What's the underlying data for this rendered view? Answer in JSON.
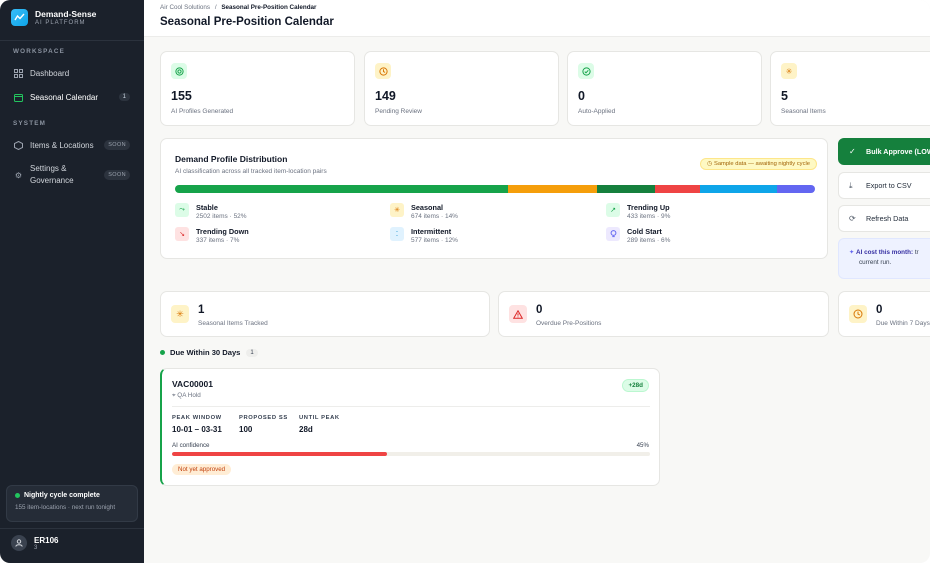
{
  "brand": {
    "name": "Demand-Sense",
    "sub": "AI PLATFORM"
  },
  "sidebar": {
    "workspace_label": "WORKSPACE",
    "system_label": "SYSTEM",
    "items": [
      {
        "label": "Dashboard",
        "icon": "grid-icon"
      },
      {
        "label": "Seasonal Calendar",
        "icon": "calendar-icon",
        "count": "1",
        "active": true
      },
      {
        "label": "Items & Locations",
        "icon": "box-icon",
        "badge": "SOON"
      },
      {
        "label": "Settings & Governance",
        "icon": "gear-icon",
        "badge": "SOON"
      }
    ],
    "nightly": {
      "title": "Nightly cycle complete",
      "sub": "155 item-locations · next run tonight"
    },
    "user": {
      "name": "ER106",
      "sub": "3"
    }
  },
  "header": {
    "breadcrumb_root": "Air Cool Solutions",
    "breadcrumb_sep": "/",
    "breadcrumb_current": "Seasonal Pre-Position Calendar",
    "title": "Seasonal Pre-Position Calendar"
  },
  "stats": [
    {
      "value": "155",
      "label": "AI Profiles Generated"
    },
    {
      "value": "149",
      "label": "Pending Review"
    },
    {
      "value": "0",
      "label": "Auto-Applied"
    },
    {
      "value": "5",
      "label": "Seasonal Items"
    }
  ],
  "distribution": {
    "title": "Demand Profile Distribution",
    "subtitle": "AI classification across all tracked item-location pairs",
    "sample_badge": "Sample data — awaiting nightly cycle",
    "segments": [
      {
        "name": "Stable",
        "fraction": 0.52,
        "color": "#16a34a"
      },
      {
        "name": "Seasonal",
        "fraction": 0.14,
        "color": "#f59e0b"
      },
      {
        "name": "Trending Up",
        "fraction": 0.09,
        "color": "#15803d"
      },
      {
        "name": "Trending Down",
        "fraction": 0.07,
        "color": "#ef4444"
      },
      {
        "name": "Intermittent",
        "fraction": 0.12,
        "color": "#0ea5e9"
      },
      {
        "name": "Cold Start",
        "fraction": 0.06,
        "color": "#6366f1"
      }
    ],
    "legend": [
      {
        "name": "Stable",
        "sub": "2502 items · 52%"
      },
      {
        "name": "Seasonal",
        "sub": "674 items · 14%"
      },
      {
        "name": "Trending Up",
        "sub": "433 items · 9%"
      },
      {
        "name": "Trending Down",
        "sub": "337 items · 7%"
      },
      {
        "name": "Intermittent",
        "sub": "577 items · 12%"
      },
      {
        "name": "Cold Start",
        "sub": "289 items · 6%"
      }
    ]
  },
  "actions": {
    "bulk_approve": "Bulk Approve (LOW",
    "export": "Export to CSV",
    "refresh": "Refresh Data",
    "cost_title": "AI cost this month:",
    "cost_rest": "tr",
    "cost_line2": "current run."
  },
  "seasonal_stats": [
    {
      "value": "1",
      "label": "Seasonal Items Tracked"
    },
    {
      "value": "0",
      "label": "Overdue Pre-Positions"
    },
    {
      "value": "0",
      "label": "Due Within 7 Days"
    }
  ],
  "due": {
    "heading": "Due Within 30 Days",
    "count": "1",
    "item": {
      "sku": "VAC00001",
      "status": "QA Hold",
      "days": "+28d",
      "peak_window_label": "PEAK WINDOW",
      "peak_window": "10-01 – 03-31",
      "proposed_ss_label": "PROPOSED SS",
      "proposed_ss": "100",
      "until_peak_label": "UNTIL PEAK",
      "until_peak": "28d",
      "confidence_label": "AI confidence",
      "confidence_pct": "45%",
      "confidence": 0.45,
      "approval": "Not yet approved"
    }
  }
}
